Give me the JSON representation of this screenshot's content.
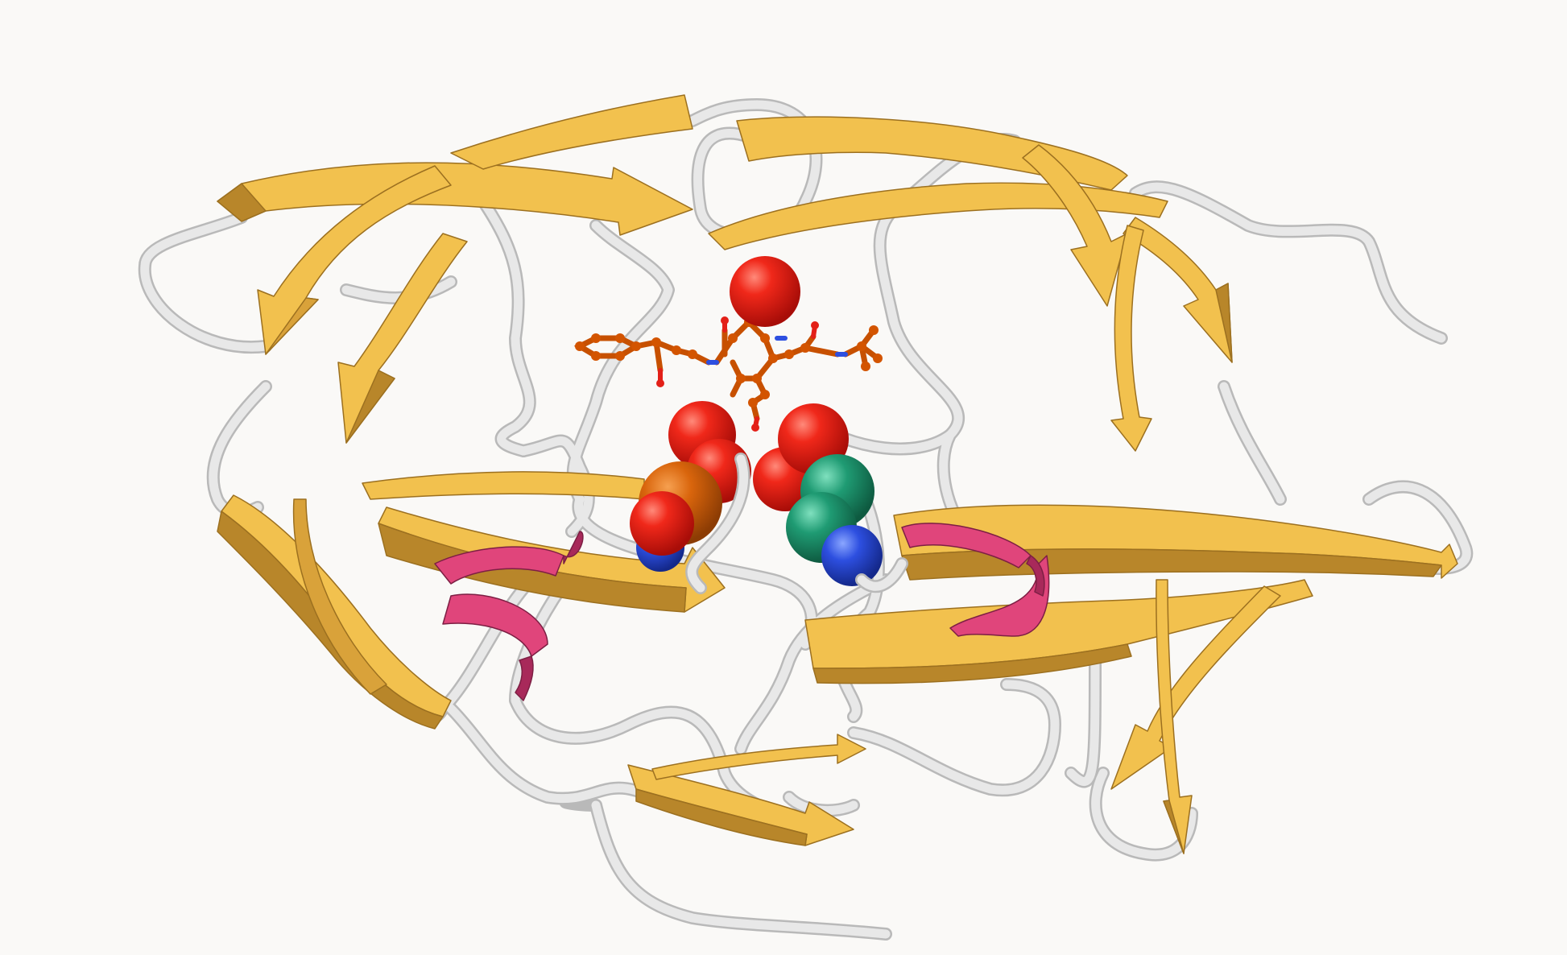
{
  "scene": {
    "background": "#faf9f7",
    "colors": {
      "sheet": "#f2c14e",
      "sheet_shade": "#b8862a",
      "helix": "#e0457b",
      "helix_shade": "#a8295a",
      "coil": "#e4e4e4",
      "coil_edge": "#b9b9b9",
      "ligand": "#d35400",
      "oxygen": "#e32018",
      "nitrogen": "#2d4fe0",
      "carbon_teal": "#1f9b73",
      "phosphorus": "#d96a0c"
    },
    "elements": {
      "strands": "beta-sheet-strand",
      "helices": "alpha-helix",
      "loops": "coil-loop",
      "inhibitor": "ball-and-stick-ligand",
      "spheres": "space-filling-atoms"
    }
  }
}
